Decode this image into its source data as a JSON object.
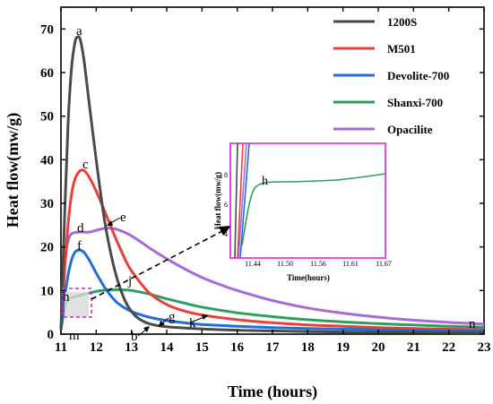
{
  "chart_data": {
    "type": "line",
    "xlabel": "Time (hours)",
    "ylabel": "Heat flow(mw/g)",
    "xlim": [
      11,
      23
    ],
    "ylim": [
      0,
      75
    ],
    "xticks": [
      11,
      12,
      13,
      14,
      15,
      16,
      17,
      18,
      19,
      20,
      21,
      22,
      23
    ],
    "yticks": [
      0,
      10,
      20,
      30,
      40,
      50,
      60,
      70
    ],
    "legend_position": "top-right",
    "series": [
      {
        "name": "1200S",
        "color": "#4a4a4a",
        "points": [
          [
            11.0,
            1
          ],
          [
            11.1,
            26
          ],
          [
            11.2,
            48
          ],
          [
            11.3,
            61
          ],
          [
            11.4,
            67
          ],
          [
            11.48,
            68.2
          ],
          [
            11.55,
            67.5
          ],
          [
            11.65,
            63
          ],
          [
            11.8,
            53
          ],
          [
            12.0,
            40
          ],
          [
            12.2,
            28
          ],
          [
            12.4,
            19
          ],
          [
            12.6,
            12.5
          ],
          [
            12.8,
            8
          ],
          [
            13.0,
            5.2
          ],
          [
            13.2,
            3.6
          ],
          [
            13.5,
            2.4
          ],
          [
            14.0,
            1.7
          ],
          [
            15.0,
            1.2
          ],
          [
            16,
            0.9
          ],
          [
            17,
            0.75
          ],
          [
            18,
            0.6
          ],
          [
            19,
            0.5
          ],
          [
            20,
            0.45
          ],
          [
            21,
            0.4
          ],
          [
            22,
            0.35
          ],
          [
            23,
            0.3
          ]
        ]
      },
      {
        "name": "M501",
        "color": "#e8403a",
        "points": [
          [
            11.0,
            1
          ],
          [
            11.1,
            14
          ],
          [
            11.2,
            25
          ],
          [
            11.3,
            32
          ],
          [
            11.4,
            35.6
          ],
          [
            11.55,
            37.5
          ],
          [
            11.7,
            37.2
          ],
          [
            11.9,
            34.5
          ],
          [
            12.2,
            29
          ],
          [
            12.5,
            23
          ],
          [
            12.8,
            17.5
          ],
          [
            13.0,
            14.5
          ],
          [
            13.5,
            9.5
          ],
          [
            14,
            6.8
          ],
          [
            14.5,
            5.3
          ],
          [
            15,
            4.4
          ],
          [
            16,
            3.3
          ],
          [
            17,
            2.6
          ],
          [
            18,
            2.1
          ],
          [
            19,
            1.8
          ],
          [
            20,
            1.5
          ],
          [
            21,
            1.3
          ],
          [
            22,
            1.15
          ],
          [
            23,
            1.0
          ]
        ]
      },
      {
        "name": "Devolite-700",
        "color": "#1f6fd6",
        "points": [
          [
            11.0,
            1
          ],
          [
            11.1,
            8
          ],
          [
            11.2,
            13.5
          ],
          [
            11.3,
            17
          ],
          [
            11.4,
            18.8
          ],
          [
            11.52,
            19.3
          ],
          [
            11.65,
            18.8
          ],
          [
            11.8,
            17
          ],
          [
            12.0,
            14
          ],
          [
            12.3,
            10
          ],
          [
            12.6,
            7.2
          ],
          [
            13.0,
            5.2
          ],
          [
            13.5,
            3.9
          ],
          [
            14,
            3.1
          ],
          [
            14.5,
            2.6
          ],
          [
            15,
            2.2
          ],
          [
            16,
            1.8
          ],
          [
            17,
            1.5
          ],
          [
            18,
            1.3
          ],
          [
            19,
            1.15
          ],
          [
            20,
            1.0
          ],
          [
            21,
            0.9
          ],
          [
            22,
            0.8
          ],
          [
            23,
            0.7
          ]
        ]
      },
      {
        "name": "Shanxi-700",
        "color": "#2e9e5e",
        "points": [
          [
            11.0,
            1
          ],
          [
            11.08,
            5
          ],
          [
            11.15,
            7.2
          ],
          [
            11.25,
            8.2
          ],
          [
            11.4,
            8.6
          ],
          [
            11.7,
            9.2
          ],
          [
            12.0,
            9.8
          ],
          [
            12.3,
            10.1
          ],
          [
            12.6,
            10.2
          ],
          [
            13.0,
            10.0
          ],
          [
            13.5,
            9.2
          ],
          [
            14,
            8.1
          ],
          [
            14.5,
            7.1
          ],
          [
            15,
            6.2
          ],
          [
            16,
            4.9
          ],
          [
            17,
            4.0
          ],
          [
            18,
            3.3
          ],
          [
            19,
            2.8
          ],
          [
            20,
            2.4
          ],
          [
            21,
            2.1
          ],
          [
            22,
            1.8
          ],
          [
            23,
            1.6
          ]
        ]
      },
      {
        "name": "Opacilite",
        "color": "#a56bd8",
        "points": [
          [
            11.0,
            1
          ],
          [
            11.08,
            12
          ],
          [
            11.15,
            19
          ],
          [
            11.25,
            22.5
          ],
          [
            11.4,
            23.3
          ],
          [
            11.6,
            23.4
          ],
          [
            11.8,
            23.4
          ],
          [
            12.0,
            23.8
          ],
          [
            12.2,
            24.2
          ],
          [
            12.4,
            24.3
          ],
          [
            12.6,
            24.0
          ],
          [
            12.9,
            23.0
          ],
          [
            13.2,
            21.5
          ],
          [
            13.6,
            19.3
          ],
          [
            14,
            17.3
          ],
          [
            14.5,
            15.0
          ],
          [
            15,
            13.0
          ],
          [
            15.5,
            11.4
          ],
          [
            16,
            10.0
          ],
          [
            17,
            7.7
          ],
          [
            18,
            6.0
          ],
          [
            19,
            4.8
          ],
          [
            20,
            3.9
          ],
          [
            21,
            3.2
          ],
          [
            22,
            2.7
          ],
          [
            23,
            2.3
          ]
        ]
      }
    ],
    "annotations": [
      "a",
      "b",
      "c",
      "d",
      "e",
      "f",
      "g",
      "h",
      "j",
      "k",
      "m",
      "n"
    ],
    "inset": {
      "ylabel": "Heat flow(mw/g)",
      "xlabel": "Time(hours)",
      "xticks": [
        "11.44",
        "11.50",
        "11.56",
        "11.61",
        "11.67"
      ],
      "yticks": [
        "4",
        "6",
        "8"
      ],
      "annotation": "h",
      "frame_color": "#e020e0"
    }
  }
}
